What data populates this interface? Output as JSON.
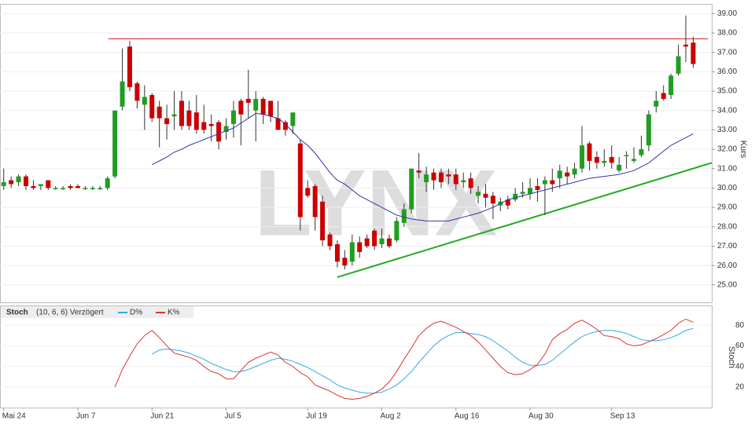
{
  "chart_data": [
    {
      "type": "candlestick",
      "watermark": "LYNX",
      "y_label": "Kurs",
      "xlim": [
        -0.5,
        95.5
      ],
      "ylim": [
        24.1,
        39.5
      ],
      "xticks": [
        {
          "value": 0,
          "label": "Mai 24"
        },
        {
          "value": 10,
          "label": "Jun 7"
        },
        {
          "value": 20,
          "label": "Jun 21"
        },
        {
          "value": 30,
          "label": "Jul 5"
        },
        {
          "value": 41,
          "label": "Jul 19"
        },
        {
          "value": 51,
          "label": "Aug 2"
        },
        {
          "value": 61,
          "label": "Aug 16"
        },
        {
          "value": 71,
          "label": "Aug 30"
        },
        {
          "value": 82,
          "label": "Sep 13"
        }
      ],
      "yticks": [
        {
          "value": 25,
          "label": "25.00"
        },
        {
          "value": 26,
          "label": "26.00"
        },
        {
          "value": 27,
          "label": "27.00"
        },
        {
          "value": 28,
          "label": "28.00"
        },
        {
          "value": 29,
          "label": "29.00"
        },
        {
          "value": 30,
          "label": "30.00"
        },
        {
          "value": 31,
          "label": "31.00"
        },
        {
          "value": 32,
          "label": "32.00"
        },
        {
          "value": 33,
          "label": "33.00"
        },
        {
          "value": 34,
          "label": "34.00"
        },
        {
          "value": 35,
          "label": "35.00"
        },
        {
          "value": 36,
          "label": "36.00"
        },
        {
          "value": 37,
          "label": "37.00"
        },
        {
          "value": 38,
          "label": "38.00"
        },
        {
          "value": 39,
          "label": "39.00"
        }
      ],
      "grid": true,
      "up_color": "#1f9e1f",
      "down_color": "#cc0000",
      "ohlc": [
        [
          30.1,
          31.0,
          29.9,
          30.3
        ],
        [
          30.4,
          30.6,
          30.0,
          30.2
        ],
        [
          30.3,
          30.7,
          30.1,
          30.6
        ],
        [
          30.6,
          30.7,
          29.9,
          30.1
        ],
        [
          30.1,
          30.4,
          29.9,
          30.0
        ],
        [
          30.1,
          30.2,
          29.9,
          30.2
        ],
        [
          30.4,
          30.4,
          29.9,
          30.0
        ],
        [
          30.0,
          30.1,
          29.9,
          30.0
        ],
        [
          30.0,
          30.1,
          29.9,
          30.0
        ],
        [
          30.1,
          30.2,
          29.9,
          30.0
        ],
        [
          30.1,
          30.2,
          30.0,
          30.0
        ],
        [
          30.0,
          30.1,
          29.9,
          30.0
        ],
        [
          30.0,
          30.1,
          29.9,
          30.0
        ],
        [
          30.0,
          30.1,
          29.9,
          30.0
        ],
        [
          30.0,
          30.6,
          29.9,
          30.5
        ],
        [
          30.6,
          34.0,
          30.5,
          34.0
        ],
        [
          34.2,
          37.2,
          34.0,
          35.5
        ],
        [
          37.3,
          37.6,
          35.0,
          35.2
        ],
        [
          35.4,
          35.5,
          34.1,
          34.5
        ],
        [
          34.3,
          35.3,
          33.0,
          34.7
        ],
        [
          34.8,
          34.9,
          33.4,
          33.6
        ],
        [
          34.2,
          34.5,
          32.1,
          33.6
        ],
        [
          33.6,
          34.3,
          32.5,
          33.3
        ],
        [
          33.7,
          35.0,
          33.0,
          33.8
        ],
        [
          34.5,
          35.0,
          33.0,
          33.2
        ],
        [
          34.0,
          34.5,
          33.0,
          33.2
        ],
        [
          33.9,
          34.8,
          32.8,
          33.0
        ],
        [
          33.4,
          34.3,
          32.8,
          33.0
        ],
        [
          33.3,
          33.8,
          32.4,
          33.2
        ],
        [
          33.4,
          33.5,
          32.0,
          32.4
        ],
        [
          32.9,
          33.6,
          32.5,
          33.2
        ],
        [
          33.3,
          34.5,
          32.6,
          34.0
        ],
        [
          34.5,
          34.6,
          32.2,
          33.8
        ],
        [
          34.6,
          36.1,
          33.6,
          34.4
        ],
        [
          34.0,
          35.0,
          32.4,
          34.6
        ],
        [
          34.6,
          34.7,
          33.3,
          33.8
        ],
        [
          34.5,
          34.5,
          33.4,
          33.7
        ],
        [
          33.6,
          34.5,
          33.0,
          33.0
        ],
        [
          33.4,
          33.5,
          32.7,
          33.0
        ],
        [
          33.2,
          33.9,
          32.8,
          33.9
        ],
        [
          32.3,
          32.5,
          27.8,
          28.5
        ],
        [
          30.0,
          30.4,
          29.5,
          29.6
        ],
        [
          30.1,
          30.2,
          27.8,
          28.5
        ],
        [
          29.3,
          29.6,
          27.0,
          27.3
        ],
        [
          27.6,
          27.7,
          26.8,
          27.0
        ],
        [
          27.1,
          27.3,
          25.9,
          26.2
        ],
        [
          26.4,
          26.8,
          25.8,
          26.0
        ],
        [
          26.2,
          27.6,
          26.0,
          27.2
        ],
        [
          27.2,
          27.5,
          26.4,
          26.7
        ],
        [
          27.4,
          27.6,
          26.9,
          27.0
        ],
        [
          27.8,
          27.9,
          26.8,
          27.0
        ],
        [
          27.1,
          27.9,
          26.9,
          27.4
        ],
        [
          27.4,
          27.6,
          26.9,
          27.0
        ],
        [
          27.3,
          28.5,
          27.2,
          28.3
        ],
        [
          28.2,
          29.2,
          28.0,
          28.9
        ],
        [
          28.9,
          31.0,
          28.7,
          31.0
        ],
        [
          30.9,
          31.8,
          30.5,
          30.8
        ],
        [
          30.3,
          31.1,
          29.8,
          30.7
        ],
        [
          30.8,
          31.0,
          29.9,
          30.4
        ],
        [
          30.8,
          31.0,
          30.0,
          30.3
        ],
        [
          30.7,
          31.0,
          30.2,
          30.6
        ],
        [
          30.7,
          31.0,
          29.9,
          30.2
        ],
        [
          30.3,
          30.8,
          30.0,
          30.4
        ],
        [
          30.5,
          30.8,
          29.7,
          30.0
        ],
        [
          29.6,
          30.1,
          29.2,
          29.8
        ],
        [
          29.7,
          30.2,
          29.0,
          29.5
        ],
        [
          29.6,
          29.8,
          28.4,
          29.2
        ],
        [
          29.1,
          29.5,
          28.8,
          29.3
        ],
        [
          29.4,
          29.6,
          28.9,
          29.1
        ],
        [
          29.4,
          30.0,
          29.3,
          29.7
        ],
        [
          29.7,
          30.3,
          29.5,
          29.8
        ],
        [
          29.7,
          30.5,
          29.4,
          30.0
        ],
        [
          30.1,
          30.5,
          29.3,
          29.9
        ],
        [
          30.2,
          30.6,
          28.6,
          30.4
        ],
        [
          30.4,
          31.0,
          29.8,
          30.2
        ],
        [
          30.5,
          31.2,
          30.0,
          30.9
        ],
        [
          30.8,
          31.1,
          30.2,
          30.6
        ],
        [
          30.7,
          31.3,
          30.5,
          31.0
        ],
        [
          31.0,
          33.2,
          30.8,
          32.2
        ],
        [
          32.3,
          32.4,
          30.9,
          31.4
        ],
        [
          31.6,
          31.9,
          31.0,
          31.3
        ],
        [
          31.3,
          32.0,
          31.1,
          31.4
        ],
        [
          31.6,
          32.2,
          31.0,
          31.3
        ],
        [
          30.9,
          31.6,
          30.8,
          31.2
        ],
        [
          31.7,
          31.9,
          31.0,
          31.7
        ],
        [
          31.4,
          32.1,
          31.3,
          31.5
        ],
        [
          31.7,
          32.7,
          31.6,
          32.0
        ],
        [
          32.2,
          34.0,
          31.9,
          33.8
        ],
        [
          34.2,
          35.0,
          33.9,
          34.5
        ],
        [
          34.9,
          35.3,
          34.5,
          34.6
        ],
        [
          34.8,
          35.9,
          34.6,
          35.8
        ],
        [
          35.9,
          37.4,
          35.8,
          36.8
        ],
        [
          37.4,
          38.9,
          36.5,
          37.3
        ],
        [
          37.5,
          37.8,
          36.2,
          36.4
        ]
      ],
      "sma": {
        "color": "#3333aa",
        "values": [
          null,
          null,
          null,
          null,
          null,
          null,
          null,
          null,
          null,
          null,
          null,
          null,
          null,
          null,
          null,
          null,
          null,
          null,
          null,
          null,
          31.2,
          31.4,
          31.6,
          31.85,
          32.0,
          32.2,
          32.35,
          32.5,
          32.65,
          32.8,
          32.95,
          33.1,
          33.35,
          33.6,
          33.85,
          33.8,
          33.7,
          33.6,
          33.3,
          32.9,
          32.5,
          32.2,
          31.8,
          31.3,
          30.8,
          30.4,
          30.2,
          29.9,
          29.6,
          29.4,
          29.2,
          29.0,
          28.8,
          28.6,
          28.5,
          28.4,
          28.35,
          28.3,
          28.3,
          28.3,
          28.3,
          28.4,
          28.5,
          28.6,
          28.7,
          28.85,
          29.0,
          29.2,
          29.4,
          29.5,
          29.6,
          29.7,
          29.8,
          29.9,
          30.0,
          30.1,
          30.2,
          30.3,
          30.4,
          30.5,
          30.55,
          30.6,
          30.65,
          30.7,
          30.8,
          30.9,
          31.1,
          31.3,
          31.6,
          31.9,
          32.2,
          32.4,
          32.6,
          32.8
        ]
      },
      "lines": [
        {
          "color": "#dd3333",
          "x": [
            14.1,
            95
          ],
          "y": [
            37.7,
            37.7
          ]
        },
        {
          "color": "#22aa22",
          "x": [
            45,
            95.5
          ],
          "y": [
            25.4,
            31.3
          ]
        }
      ]
    },
    {
      "type": "stochastic",
      "title": "Stoch",
      "params": "(10, 6, 6) Verzögert",
      "y_label": "Stoch",
      "xlim": [
        -0.5,
        95.5
      ],
      "ylim": [
        0,
        98.5
      ],
      "yticks": [
        20,
        40,
        60,
        80
      ],
      "series": [
        {
          "name": "D%",
          "color": "#33aadd",
          "values": [
            null,
            null,
            null,
            null,
            null,
            null,
            null,
            null,
            null,
            null,
            null,
            null,
            null,
            null,
            null,
            null,
            null,
            null,
            null,
            null,
            52,
            56,
            57,
            56,
            55,
            53,
            50,
            47,
            43,
            40,
            37,
            35,
            35,
            37,
            40,
            43,
            46,
            48,
            47,
            45,
            42,
            39,
            35,
            31,
            27,
            22,
            19,
            17,
            15,
            14,
            14,
            15,
            18,
            22,
            28,
            35,
            44,
            52,
            60,
            66,
            70,
            73,
            73,
            72,
            71,
            69,
            65,
            60,
            55,
            49,
            44,
            41,
            41,
            42,
            46,
            52,
            58,
            64,
            69,
            72,
            74,
            75,
            75,
            74,
            72,
            69,
            66,
            65,
            65,
            66,
            68,
            71,
            75,
            77
          ]
        },
        {
          "name": "K%",
          "color": "#dd3333",
          "values": [
            null,
            null,
            null,
            null,
            null,
            null,
            null,
            null,
            null,
            null,
            null,
            null,
            null,
            null,
            null,
            20,
            37,
            50,
            62,
            70,
            75,
            68,
            60,
            53,
            51,
            49,
            46,
            40,
            35,
            33,
            28,
            28,
            36,
            44,
            48,
            51,
            54,
            51,
            44,
            40,
            34,
            30,
            22,
            19,
            16,
            12,
            9,
            8,
            9,
            11,
            14,
            18,
            25,
            35,
            47,
            58,
            70,
            77,
            82,
            84,
            81,
            78,
            74,
            70,
            64,
            56,
            48,
            40,
            34,
            32,
            33,
            37,
            42,
            52,
            66,
            72,
            76,
            82,
            85,
            81,
            76,
            70,
            69,
            67,
            62,
            60,
            61,
            64,
            67,
            71,
            75,
            82,
            86,
            83
          ]
        }
      ]
    }
  ]
}
